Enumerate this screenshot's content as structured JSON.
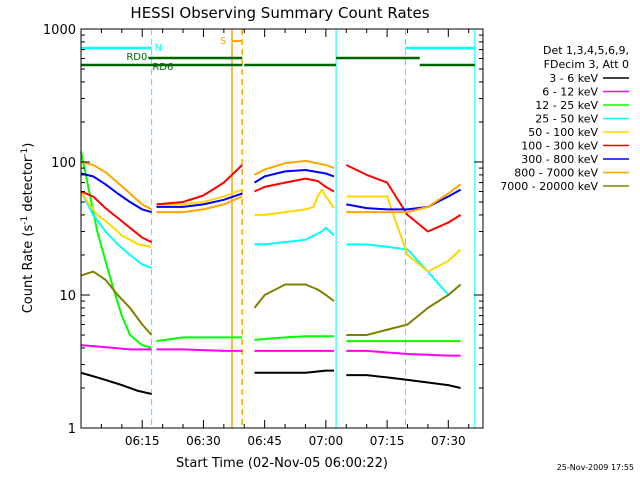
{
  "chart_data": {
    "type": "line",
    "title": "HESSI Observing Summary Count Rates",
    "xlabel": "Start Time (02-Nov-05 06:00:22)",
    "ylabel": "Count Rate (s",
    "ylabel_sup1": "-1",
    "ylabel_mid": " detector",
    "ylabel_sup2": "-1",
    "ylabel_end": ")",
    "y_scale": "log",
    "ylim": [
      1,
      1000
    ],
    "xlim": [
      0,
      98.5
    ],
    "x_unit": "minutes after 06:00:22",
    "x_ticks": [
      {
        "t": 15,
        "label": "06:15"
      },
      {
        "t": 30,
        "label": "06:30"
      },
      {
        "t": 45,
        "label": "06:45"
      },
      {
        "t": 60,
        "label": "07:00"
      },
      {
        "t": 75,
        "label": "07:15"
      },
      {
        "t": 90,
        "label": "07:30"
      }
    ],
    "y_ticks": [
      {
        "v": 1,
        "label": "1"
      },
      {
        "v": 10,
        "label": "10"
      },
      {
        "v": 100,
        "label": "100"
      },
      {
        "v": 1000,
        "label": "1000"
      }
    ],
    "legend": {
      "placement": "right",
      "header": [
        "Det 1,3,4,5,6,9,",
        "FDecim 3, Att 0"
      ]
    },
    "series": [
      {
        "name": "3 - 6 keV",
        "color": "#000000",
        "values_segments": [
          [
            [
              0,
              2.6
            ],
            [
              2,
              2.5
            ],
            [
              4,
              2.4
            ],
            [
              6,
              2.3
            ],
            [
              8,
              2.2
            ],
            [
              10,
              2.1
            ],
            [
              12,
              2.0
            ],
            [
              14,
              1.9
            ],
            [
              17.3,
              1.8
            ]
          ],
          [
            [
              42.5,
              2.6
            ],
            [
              45,
              2.6
            ],
            [
              50,
              2.6
            ],
            [
              55,
              2.6
            ],
            [
              60,
              2.7
            ],
            [
              62,
              2.7
            ]
          ],
          [
            [
              65,
              2.5
            ],
            [
              70,
              2.5
            ],
            [
              75,
              2.4
            ],
            [
              80,
              2.3
            ],
            [
              85,
              2.2
            ],
            [
              90,
              2.1
            ],
            [
              93,
              2.0
            ]
          ]
        ]
      },
      {
        "name": "6 - 12 keV",
        "color": "#ff00ff",
        "values_segments": [
          [
            [
              0,
              4.2
            ],
            [
              4,
              4.1
            ],
            [
              8,
              4.0
            ],
            [
              12,
              3.9
            ],
            [
              17.3,
              3.9
            ]
          ],
          [
            [
              18.5,
              3.9
            ],
            [
              25,
              3.9
            ],
            [
              35,
              3.8
            ],
            [
              39.5,
              3.8
            ]
          ],
          [
            [
              42.5,
              3.8
            ],
            [
              50,
              3.8
            ],
            [
              55,
              3.8
            ],
            [
              60,
              3.8
            ],
            [
              62,
              3.8
            ]
          ],
          [
            [
              65,
              3.8
            ],
            [
              70,
              3.8
            ],
            [
              80,
              3.6
            ],
            [
              90,
              3.5
            ],
            [
              93,
              3.5
            ]
          ]
        ]
      },
      {
        "name": "12 - 25 keV",
        "color": "#00ff00",
        "values_segments": [
          [
            [
              0,
              120
            ],
            [
              2,
              60
            ],
            [
              4,
              30
            ],
            [
              6,
              18
            ],
            [
              8,
              11
            ],
            [
              10,
              7
            ],
            [
              12,
              5
            ],
            [
              15,
              4.2
            ],
            [
              17.3,
              4
            ]
          ],
          [
            [
              18.5,
              4.5
            ],
            [
              25,
              4.8
            ],
            [
              35,
              4.8
            ],
            [
              39.5,
              4.8
            ]
          ],
          [
            [
              42.5,
              4.6
            ],
            [
              50,
              4.8
            ],
            [
              55,
              4.9
            ],
            [
              60,
              4.9
            ],
            [
              62,
              4.9
            ]
          ],
          [
            [
              65,
              4.5
            ],
            [
              70,
              4.5
            ],
            [
              80,
              4.5
            ],
            [
              90,
              4.5
            ],
            [
              93,
              4.5
            ]
          ]
        ]
      },
      {
        "name": "25 - 50 keV",
        "color": "#00ffff",
        "values_segments": [
          [
            [
              0,
              60
            ],
            [
              3,
              40
            ],
            [
              6,
              30
            ],
            [
              9,
              24
            ],
            [
              12,
              20
            ],
            [
              15,
              17
            ],
            [
              17.3,
              16
            ]
          ],
          [
            [
              42.5,
              24
            ],
            [
              45,
              24
            ],
            [
              50,
              25
            ],
            [
              55,
              26
            ],
            [
              59,
              30
            ],
            [
              60,
              32
            ],
            [
              62,
              28
            ]
          ],
          [
            [
              65,
              24
            ],
            [
              70,
              24
            ],
            [
              75,
              23
            ],
            [
              80,
              22
            ],
            [
              85,
              15
            ],
            [
              90,
              10
            ],
            [
              93,
              12
            ]
          ]
        ]
      },
      {
        "name": "50 - 100 keV",
        "color": "#ffd700",
        "values_segments": [
          [
            [
              0,
              60
            ],
            [
              2,
              48
            ],
            [
              4,
              40
            ],
            [
              6,
              36
            ],
            [
              8,
              32
            ],
            [
              10,
              28
            ],
            [
              12,
              26
            ],
            [
              14,
              24
            ],
            [
              17.3,
              23
            ]
          ],
          [
            [
              18.5,
              48
            ],
            [
              25,
              48
            ],
            [
              30,
              50
            ],
            [
              35,
              55
            ],
            [
              39.5,
              62
            ]
          ],
          [
            [
              42.5,
              40
            ],
            [
              45,
              40
            ],
            [
              50,
              42
            ],
            [
              55,
              44
            ],
            [
              57,
              46
            ],
            [
              58,
              55
            ],
            [
              59,
              62
            ],
            [
              60,
              55
            ],
            [
              62,
              45
            ]
          ],
          [
            [
              65,
              55
            ],
            [
              70,
              55
            ],
            [
              75,
              55
            ],
            [
              80,
              20
            ],
            [
              85,
              15
            ],
            [
              90,
              18
            ],
            [
              93,
              22
            ]
          ]
        ]
      },
      {
        "name": "100 - 300 keV",
        "color": "#ff0000",
        "values_segments": [
          [
            [
              0,
              60
            ],
            [
              3,
              55
            ],
            [
              6,
              45
            ],
            [
              9,
              38
            ],
            [
              12,
              32
            ],
            [
              15,
              27
            ],
            [
              17.3,
              25
            ]
          ],
          [
            [
              18.5,
              48
            ],
            [
              25,
              50
            ],
            [
              30,
              56
            ],
            [
              35,
              70
            ],
            [
              39.5,
              95
            ]
          ],
          [
            [
              42.5,
              60
            ],
            [
              45,
              65
            ],
            [
              50,
              70
            ],
            [
              55,
              75
            ],
            [
              58,
              72
            ],
            [
              60,
              65
            ],
            [
              62,
              60
            ]
          ],
          [
            [
              65,
              95
            ],
            [
              70,
              80
            ],
            [
              75,
              70
            ],
            [
              80,
              40
            ],
            [
              85,
              30
            ],
            [
              90,
              35
            ],
            [
              93,
              40
            ]
          ]
        ]
      },
      {
        "name": "300 - 800 keV",
        "color": "#0000ff",
        "values_segments": [
          [
            [
              0,
              82
            ],
            [
              3,
              78
            ],
            [
              6,
              68
            ],
            [
              9,
              58
            ],
            [
              12,
              50
            ],
            [
              15,
              44
            ],
            [
              17.3,
              42
            ]
          ],
          [
            [
              18.5,
              46
            ],
            [
              25,
              46
            ],
            [
              30,
              48
            ],
            [
              35,
              52
            ],
            [
              39.5,
              58
            ]
          ],
          [
            [
              42.5,
              70
            ],
            [
              45,
              78
            ],
            [
              50,
              85
            ],
            [
              55,
              87
            ],
            [
              60,
              82
            ],
            [
              62,
              78
            ]
          ],
          [
            [
              65,
              48
            ],
            [
              70,
              45
            ],
            [
              75,
              44
            ],
            [
              80,
              44
            ],
            [
              85,
              46
            ],
            [
              90,
              55
            ],
            [
              93,
              62
            ]
          ]
        ]
      },
      {
        "name": "800 - 7000 keV",
        "color": "#ffa500",
        "values_segments": [
          [
            [
              0,
              100
            ],
            [
              3,
              95
            ],
            [
              6,
              84
            ],
            [
              9,
              70
            ],
            [
              12,
              58
            ],
            [
              15,
              48
            ],
            [
              17.3,
              44
            ]
          ],
          [
            [
              18.5,
              42
            ],
            [
              25,
              42
            ],
            [
              30,
              44
            ],
            [
              35,
              48
            ],
            [
              39.5,
              55
            ]
          ],
          [
            [
              42.5,
              80
            ],
            [
              45,
              88
            ],
            [
              50,
              98
            ],
            [
              55,
              102
            ],
            [
              60,
              95
            ],
            [
              62,
              90
            ]
          ],
          [
            [
              65,
              42
            ],
            [
              70,
              42
            ],
            [
              75,
              42
            ],
            [
              80,
              42
            ],
            [
              85,
              46
            ],
            [
              90,
              58
            ],
            [
              93,
              68
            ]
          ]
        ]
      },
      {
        "name": "7000 - 20000 keV",
        "color": "#808000",
        "values_segments": [
          [
            [
              0,
              14
            ],
            [
              3,
              15
            ],
            [
              6,
              13
            ],
            [
              9,
              10
            ],
            [
              12,
              8
            ],
            [
              15,
              6
            ],
            [
              17.3,
              5
            ]
          ],
          [
            [
              42.5,
              8
            ],
            [
              45,
              10
            ],
            [
              50,
              12
            ],
            [
              55,
              12
            ],
            [
              58,
              11
            ],
            [
              60,
              10
            ],
            [
              62,
              9
            ]
          ],
          [
            [
              65,
              5
            ],
            [
              70,
              5
            ],
            [
              80,
              6
            ],
            [
              85,
              8
            ],
            [
              90,
              10
            ],
            [
              93,
              12
            ]
          ]
        ]
      }
    ],
    "annotations": {
      "N_label": "N",
      "RD0_label": "RD0",
      "RD6_label": "RD6",
      "S_label": "S",
      "night_bars": [
        [
          0,
          17.3
        ],
        [
          79.5,
          96.5
        ]
      ],
      "rd0_bars": [
        [
          16.5,
          39.5
        ],
        [
          62.5,
          83
        ]
      ],
      "rd6_bars": [
        [
          0,
          39.5
        ],
        [
          40,
          62.5
        ],
        [
          83,
          96.5
        ]
      ],
      "saa_interval": [
        37,
        39.5
      ],
      "cyan_lines": [
        17.3,
        62.5,
        79.5,
        96.5
      ],
      "colors": {
        "night": "#00ffff",
        "rd": "#006400",
        "saa": "#ffa500"
      }
    }
  },
  "timestamp": "25-Nov-2009 17:55"
}
